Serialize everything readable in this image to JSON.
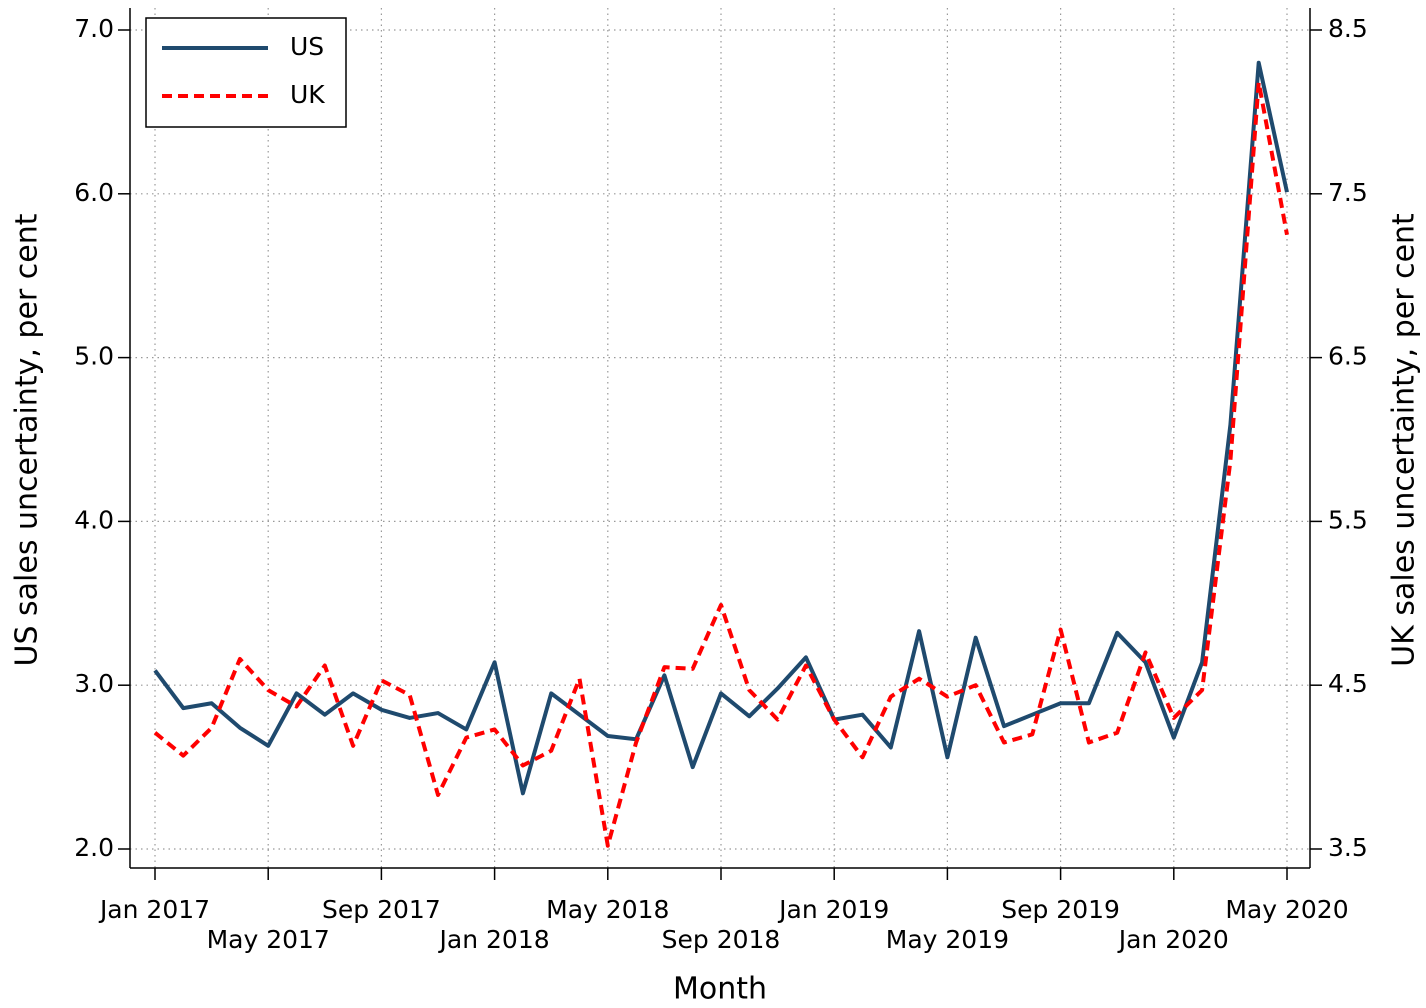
{
  "chart_data": {
    "type": "line",
    "x_label": "Month",
    "y_label": "US sales uncertainty, per cent",
    "y2_label": "UK sales uncertainty, per cent",
    "categories": [
      "Jan 2017",
      null,
      null,
      null,
      "May 2017",
      null,
      null,
      null,
      "Sep 2017",
      null,
      null,
      null,
      "Jan 2018",
      null,
      null,
      null,
      "May 2018",
      null,
      null,
      null,
      "Sep 2018",
      null,
      null,
      null,
      "Jan 2019",
      null,
      null,
      null,
      "May 2019",
      null,
      null,
      null,
      "Sep 2019",
      null,
      null,
      null,
      "Jan 2020",
      null,
      null,
      null,
      "May 2020"
    ],
    "series": [
      {
        "name": "US",
        "color": "#1f4a6e",
        "dash": "solid",
        "values": [
          3.09,
          2.86,
          2.89,
          2.74,
          2.63,
          2.95,
          2.82,
          2.95,
          2.85,
          2.8,
          2.83,
          2.73,
          3.14,
          2.34,
          2.95,
          2.82,
          2.69,
          2.67,
          3.06,
          2.5,
          2.95,
          2.81,
          2.98,
          3.17,
          2.79,
          2.82,
          2.62,
          3.33,
          2.56,
          3.29,
          2.75,
          2.82,
          2.89,
          2.89,
          3.32,
          3.14,
          2.68,
          3.14,
          4.59,
          6.8,
          6.01
        ]
      },
      {
        "name": "UK",
        "color": "#ff0000",
        "dash": "dashed",
        "axis": "y2",
        "values": [
          4.21,
          4.07,
          4.24,
          4.66,
          4.47,
          4.37,
          4.62,
          4.13,
          4.53,
          4.44,
          3.83,
          4.18,
          4.23,
          4.01,
          4.1,
          4.54,
          3.52,
          4.15,
          4.61,
          4.6,
          4.99,
          4.47,
          4.29,
          4.62,
          4.29,
          4.06,
          4.43,
          4.54,
          4.43,
          4.5,
          4.15,
          4.2,
          4.84,
          4.15,
          4.21,
          4.7,
          4.3,
          4.47,
          5.87,
          8.18,
          7.25
        ]
      }
    ],
    "ylim": [
      2.0,
      7.0
    ],
    "yticks": [
      {
        "value": 2,
        "label": "2.0"
      },
      {
        "value": 3,
        "label": "3.0"
      },
      {
        "value": 4,
        "label": "4.0"
      },
      {
        "value": 5,
        "label": "5.0"
      },
      {
        "value": 6,
        "label": "6.0"
      },
      {
        "value": 7,
        "label": "7.0"
      }
    ],
    "y2lim": [
      3.5,
      8.5
    ],
    "y2ticks": [
      3.5,
      4.5,
      5.5,
      6.5,
      7.5,
      8.5
    ],
    "grid": true,
    "legend": "top-left"
  }
}
